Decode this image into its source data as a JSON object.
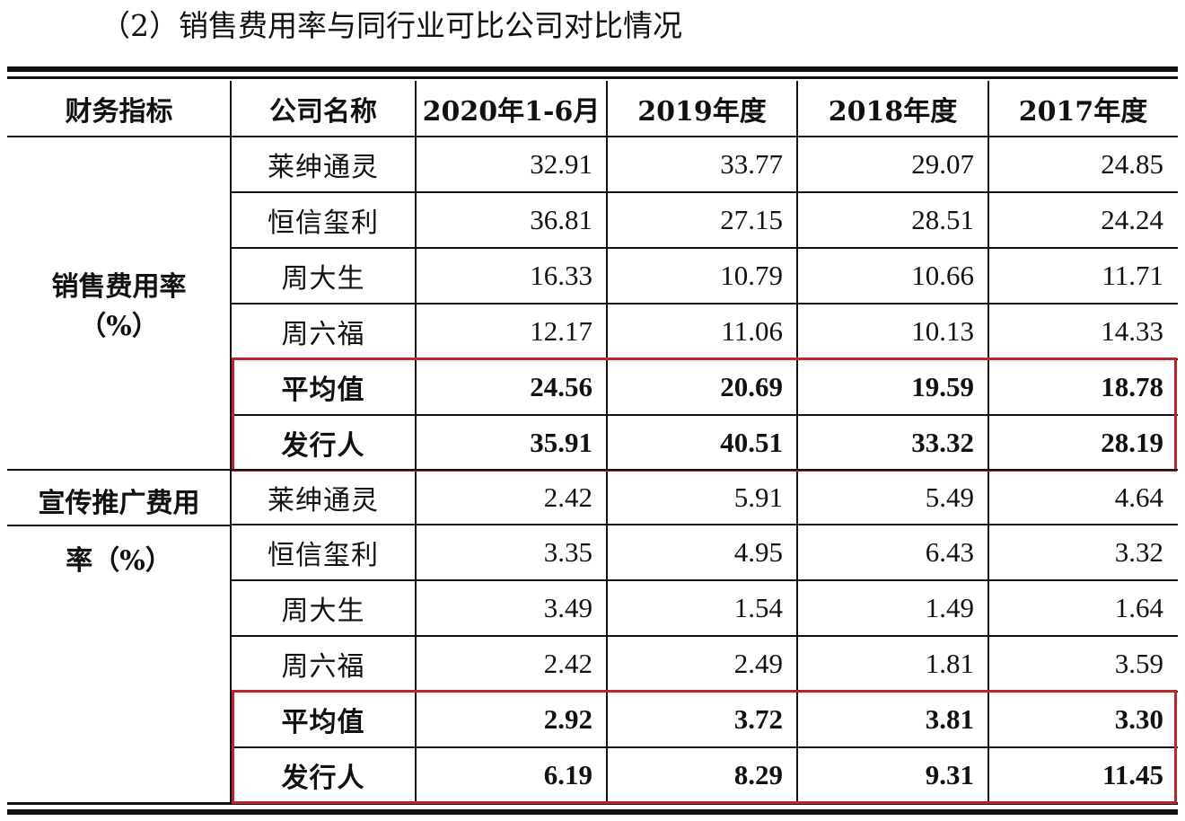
{
  "heading": "（2）销售费用率与同行业可比公司对比情况",
  "columns": [
    "财务指标",
    "公司名称",
    "2020年1-6月",
    "2019年度",
    "2018年度",
    "2017年度"
  ],
  "section1": {
    "metric_line1": "销售费用率",
    "metric_line2": "（%）",
    "rows": [
      {
        "company": "莱绅通灵",
        "values": [
          "32.91",
          "33.77",
          "29.07",
          "24.85"
        ]
      },
      {
        "company": "恒信玺利",
        "values": [
          "36.81",
          "27.15",
          "28.51",
          "24.24"
        ]
      },
      {
        "company": "周大生",
        "values": [
          "16.33",
          "10.79",
          "10.66",
          "11.71"
        ]
      },
      {
        "company": "周六福",
        "values": [
          "12.17",
          "11.06",
          "10.13",
          "14.33"
        ]
      },
      {
        "company": "平均值",
        "values": [
          "24.56",
          "20.69",
          "19.59",
          "18.78"
        ],
        "bold": true
      },
      {
        "company": "发行人",
        "values": [
          "35.91",
          "40.51",
          "33.32",
          "28.19"
        ],
        "bold": true
      }
    ]
  },
  "section2": {
    "metric_line1": "宣传推广费用",
    "metric_line2": "率（%）",
    "rows": [
      {
        "company": "莱绅通灵",
        "values": [
          "2.42",
          "5.91",
          "5.49",
          "4.64"
        ]
      },
      {
        "company": "恒信玺利",
        "values": [
          "3.35",
          "4.95",
          "6.43",
          "3.32"
        ]
      },
      {
        "company": "周大生",
        "values": [
          "3.49",
          "1.54",
          "1.49",
          "1.64"
        ]
      },
      {
        "company": "周六福",
        "values": [
          "2.42",
          "2.49",
          "1.81",
          "3.59"
        ]
      },
      {
        "company": "平均值",
        "values": [
          "2.92",
          "3.72",
          "3.81",
          "3.30"
        ],
        "bold": true
      },
      {
        "company": "发行人",
        "values": [
          "6.19",
          "8.29",
          "9.31",
          "11.45"
        ],
        "bold": true
      }
    ]
  },
  "highlight_color": "#c0242b"
}
